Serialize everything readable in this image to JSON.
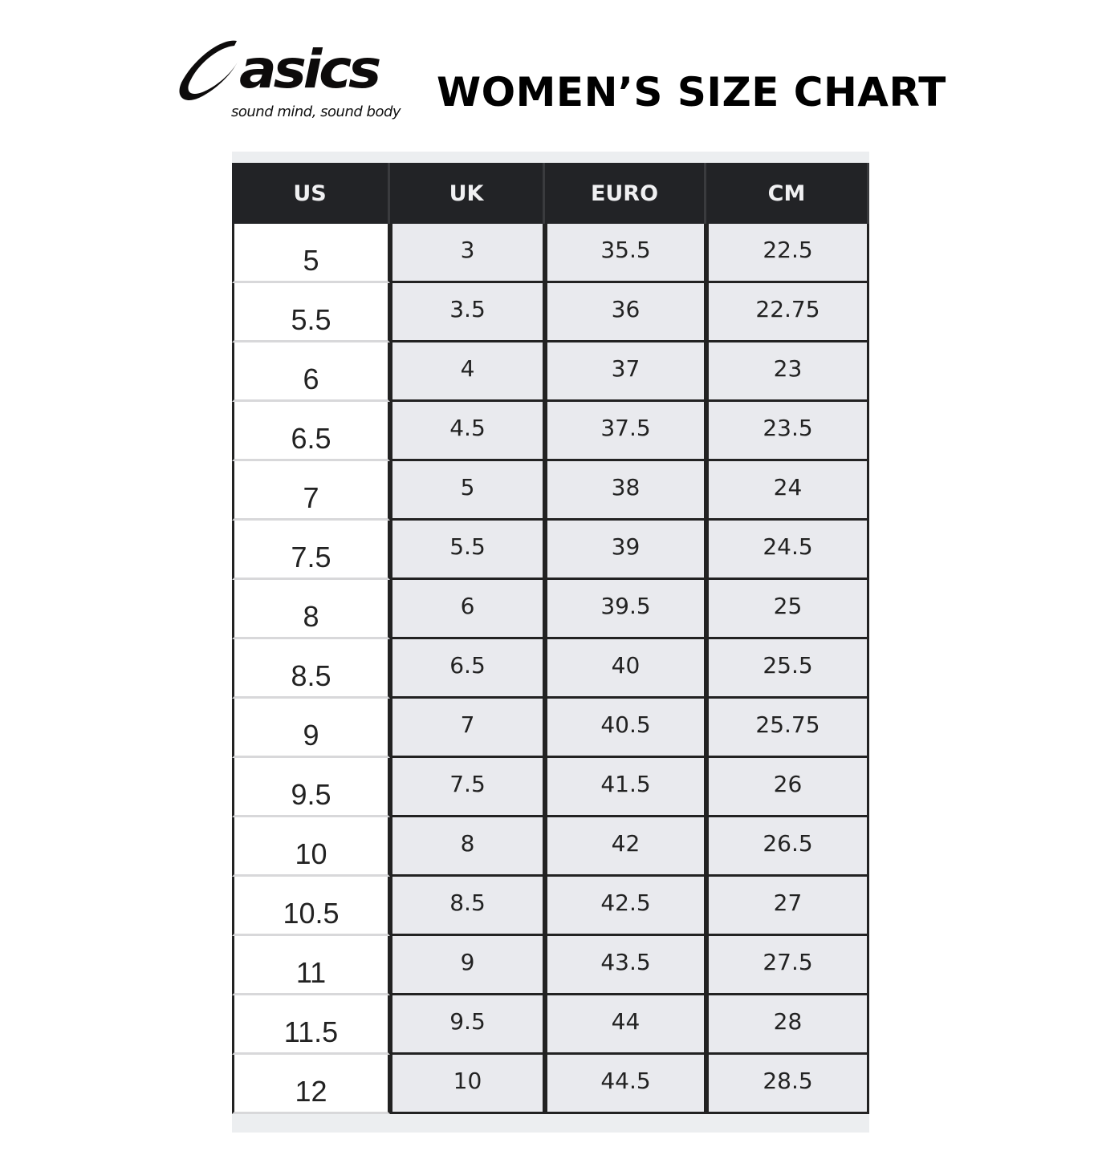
{
  "brand": {
    "name": "asics",
    "tagline": "sound mind, sound body"
  },
  "title": "WOMEN’S SIZE CHART",
  "table": {
    "headers": [
      "US",
      "UK",
      "EURO",
      "CM"
    ],
    "rows": [
      [
        "5",
        "3",
        "35.5",
        "22.5"
      ],
      [
        "5.5",
        "3.5",
        "36",
        "22.75"
      ],
      [
        "6",
        "4",
        "37",
        "23"
      ],
      [
        "6.5",
        "4.5",
        "37.5",
        "23.5"
      ],
      [
        "7",
        "5",
        "38",
        "24"
      ],
      [
        "7.5",
        "5.5",
        "39",
        "24.5"
      ],
      [
        "8",
        "6",
        "39.5",
        "25"
      ],
      [
        "8.5",
        "6.5",
        "40",
        "25.5"
      ],
      [
        "9",
        "7",
        "40.5",
        "25.75"
      ],
      [
        "9.5",
        "7.5",
        "41.5",
        "26"
      ],
      [
        "10",
        "8",
        "42",
        "26.5"
      ],
      [
        "10.5",
        "8.5",
        "42.5",
        "27"
      ],
      [
        "11",
        "9",
        "43.5",
        "27.5"
      ],
      [
        "11.5",
        "9.5",
        "44",
        "28"
      ],
      [
        "12",
        "10",
        "44.5",
        "28.5"
      ]
    ]
  }
}
